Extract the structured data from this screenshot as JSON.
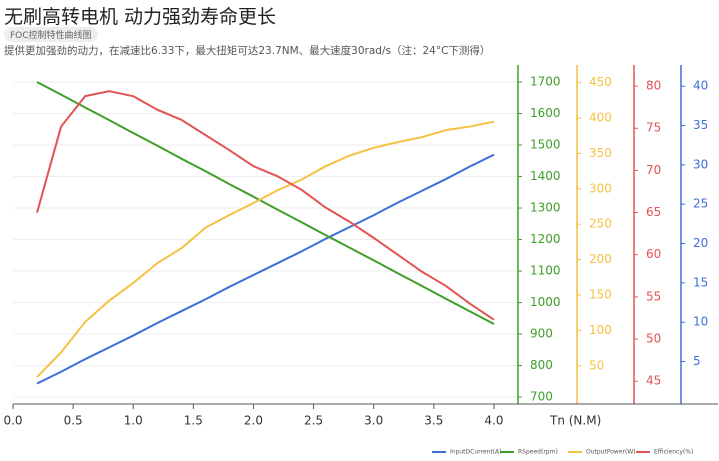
{
  "header": {
    "title": "无刷高转电机 动力强劲寿命更长",
    "tag": "FOC控制特性曲线图",
    "subtitle": "提供更加强劲的动力，在减速比6.33下，最大扭矩可达23.7NM、最大速度30rad/s（注：24°C下测得）"
  },
  "chart_data": {
    "type": "line",
    "xlabel": "Tn (N.M)",
    "x": [
      0.2,
      0.4,
      0.6,
      0.8,
      1.0,
      1.2,
      1.4,
      1.6,
      1.8,
      2.0,
      2.2,
      2.4,
      2.6,
      2.8,
      3.0,
      3.2,
      3.4,
      3.6,
      3.8,
      4.0
    ],
    "xlim": [
      0,
      4.2
    ],
    "xticks": [
      {
        "value": 0,
        "label": "0.0"
      },
      0.5,
      {
        "value": 1,
        "label": "1.0"
      },
      1.5,
      {
        "value": 2,
        "label": "2.0"
      },
      2.5,
      {
        "value": 3,
        "label": "3.0"
      },
      3.5,
      {
        "value": 4,
        "label": "4.0"
      }
    ],
    "ylim": [
      678,
      1754
    ],
    "yticks": [
      700,
      800,
      900,
      1000,
      1100,
      1200,
      1300,
      1400,
      1500,
      1600,
      1700
    ],
    "y2lim": [
      -4,
      475
    ],
    "y2ticks": [
      50,
      100,
      150,
      200,
      250,
      300,
      350,
      400,
      450
    ],
    "y3lim": [
      42.3,
      82.5
    ],
    "y3ticks": [
      45,
      50,
      55,
      60,
      65,
      70,
      75,
      80
    ],
    "y4lim": [
      -0.4,
      42.7
    ],
    "y4ticks": [
      5,
      10,
      15,
      20,
      25,
      30,
      35,
      40
    ],
    "grid": true,
    "series": [
      {
        "name": "InputDCurrent(A)",
        "color": "#3d6fd9",
        "axis": "y4",
        "values": [
          2.2,
          3.7,
          5.3,
          6.8,
          8.3,
          9.9,
          11.4,
          12.9,
          14.5,
          16.0,
          17.5,
          19.0,
          20.6,
          22.1,
          23.6,
          25.2,
          26.7,
          28.2,
          29.8,
          31.3
        ]
      },
      {
        "name": "RSpeed(rpm)",
        "color": "#3f9e2a",
        "axis": "y",
        "values": [
          1700,
          1660,
          1619,
          1579,
          1538,
          1498,
          1457,
          1417,
          1376,
          1336,
          1295,
          1255,
          1214,
          1174,
          1134,
          1093,
          1053,
          1012,
          972,
          932
        ]
      },
      {
        "name": "OutputPower(W)",
        "color": "#f5c142",
        "axis": "y2",
        "values": [
          34,
          69,
          112,
          142,
          167,
          195,
          216,
          245,
          263,
          280,
          298,
          313,
          332,
          347,
          358,
          366,
          373,
          383,
          388,
          395
        ]
      },
      {
        "name": "Efficiency(%)",
        "color": "#e35353",
        "axis": "y3",
        "values": [
          65.0,
          75.2,
          78.8,
          79.4,
          78.8,
          77.2,
          76.0,
          74.2,
          72.4,
          70.5,
          69.3,
          67.7,
          65.6,
          63.9,
          62.0,
          60.0,
          58.0,
          56.3,
          54.2,
          52.3
        ]
      }
    ]
  }
}
